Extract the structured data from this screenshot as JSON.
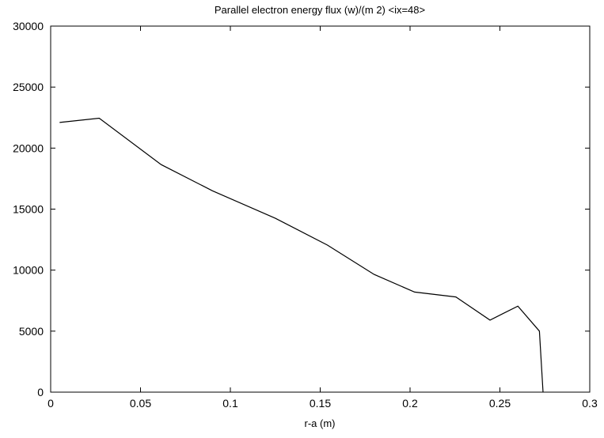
{
  "chart_data": {
    "type": "line",
    "title": "Parallel electron energy flux (w)/(m 2) <ix=48>",
    "xlabel": "r-a (m)",
    "ylabel": "",
    "xlim": [
      0,
      0.3
    ],
    "ylim": [
      0,
      30000
    ],
    "xticks": [
      0,
      0.05,
      0.1,
      0.15,
      0.2,
      0.25,
      0.3
    ],
    "xtick_labels": [
      "0",
      "0.05",
      "0.1",
      "0.15",
      "0.2",
      "0.25",
      "0.3"
    ],
    "yticks": [
      0,
      5000,
      10000,
      15000,
      20000,
      25000,
      30000
    ],
    "ytick_labels": [
      "0",
      "5000",
      "10000",
      "15000",
      "20000",
      "25000",
      "30000"
    ],
    "grid": false,
    "line_color": "#000000",
    "series": [
      {
        "x": [
          0.005,
          0.027,
          0.0615,
          0.09,
          0.125,
          0.154,
          0.18,
          0.2025,
          0.2255,
          0.2445,
          0.26,
          0.272,
          0.274
        ],
        "y": [
          22100,
          22450,
          18650,
          16500,
          14250,
          12050,
          9650,
          8200,
          7800,
          5900,
          7050,
          5000,
          0
        ]
      }
    ]
  }
}
